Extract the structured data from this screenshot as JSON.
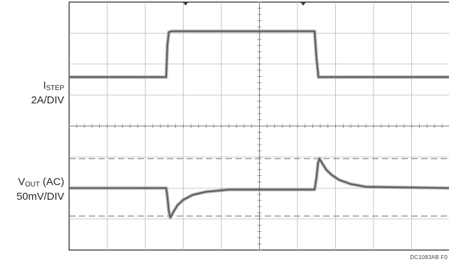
{
  "chart_data": {
    "type": "line",
    "title": "",
    "figure_id": "DC1083AB F0",
    "grid": true,
    "grid_divisions": {
      "x": 10,
      "y": 8
    },
    "channels": [
      {
        "name": "ISTEP",
        "label_main": "I",
        "label_sub": "STEP",
        "scale": "2A/DIV",
        "unit": "A",
        "baseline_div": 5.58,
        "series": {
          "name": "ISTEP",
          "x_div": [
            0,
            2.55,
            2.58,
            2.62,
            2.7,
            4.0,
            6.45,
            6.5,
            6.55,
            10
          ],
          "y_div": [
            0,
            0,
            1.0,
            1.45,
            1.48,
            1.48,
            1.48,
            0.6,
            0,
            0
          ]
        }
      },
      {
        "name": "VOUT (AC)",
        "label_main": "V",
        "label_sub": "OUT",
        "label_suffix": " (AC)",
        "scale": "50mV/DIV",
        "unit": "mV",
        "baseline_div": 2.0,
        "series": {
          "name": "VOUT (AC)",
          "x_div": [
            0,
            2.55,
            2.58,
            2.62,
            2.66,
            2.75,
            2.85,
            3.0,
            3.25,
            3.6,
            4.2,
            6.45,
            6.5,
            6.54,
            6.58,
            6.65,
            6.75,
            6.9,
            7.1,
            7.4,
            7.8,
            10
          ],
          "y_div": [
            0,
            0,
            -0.25,
            -0.75,
            -0.95,
            -0.75,
            -0.55,
            -0.38,
            -0.22,
            -0.12,
            -0.05,
            -0.05,
            0.35,
            0.8,
            0.95,
            0.8,
            0.6,
            0.42,
            0.26,
            0.13,
            0.04,
            0
          ]
        }
      }
    ],
    "reference_lines_div": [
      2.95,
      1.1
    ],
    "trigger_markers_x_div": [
      3.06,
      6.15
    ]
  }
}
